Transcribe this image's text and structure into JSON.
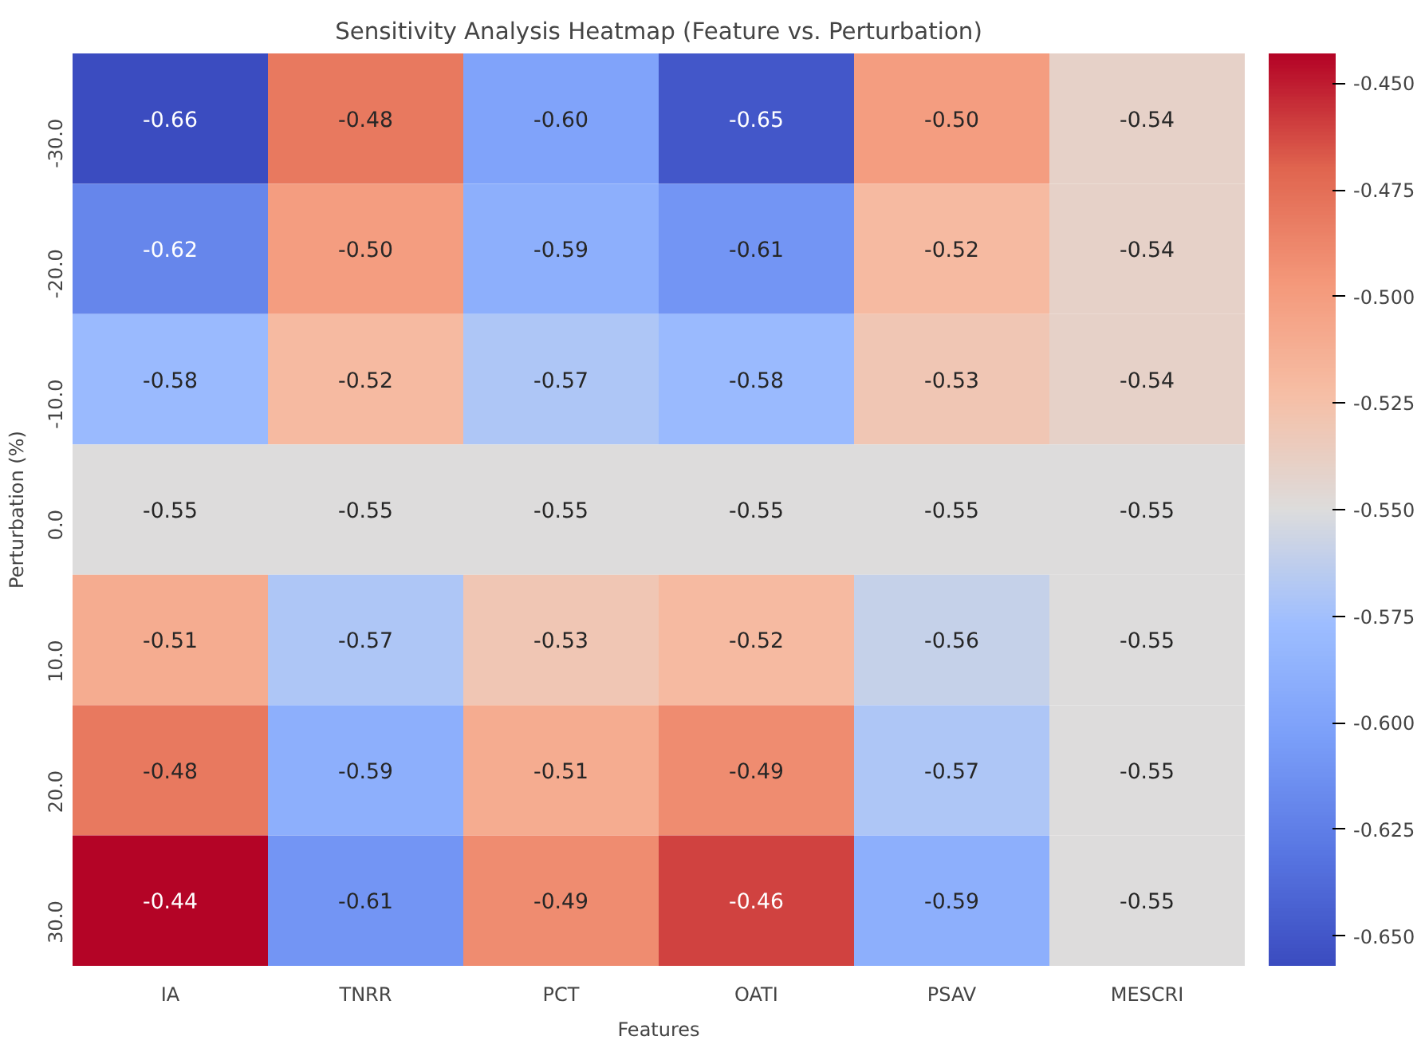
{
  "chart_data": {
    "type": "heatmap",
    "title": "Sensitivity Analysis Heatmap (Feature vs. Perturbation)",
    "xlabel": "Features",
    "ylabel": "Perturbation (%)",
    "categories": [
      "IA",
      "TNRR",
      "PCT",
      "OATI",
      "PSAV",
      "MESCRI"
    ],
    "y_categories": [
      "-30.0",
      "-20.0",
      "-10.0",
      "0.0",
      "10.0",
      "20.0",
      "30.0"
    ],
    "cells": [
      [
        -0.66,
        -0.48,
        -0.6,
        -0.65,
        -0.5,
        -0.54
      ],
      [
        -0.62,
        -0.5,
        -0.59,
        -0.61,
        -0.52,
        -0.54
      ],
      [
        -0.58,
        -0.52,
        -0.57,
        -0.58,
        -0.53,
        -0.54
      ],
      [
        -0.55,
        -0.55,
        -0.55,
        -0.55,
        -0.55,
        -0.55
      ],
      [
        -0.51,
        -0.57,
        -0.53,
        -0.52,
        -0.56,
        -0.55
      ],
      [
        -0.48,
        -0.59,
        -0.51,
        -0.49,
        -0.57,
        -0.55
      ],
      [
        -0.44,
        -0.61,
        -0.49,
        -0.46,
        -0.59,
        -0.55
      ]
    ],
    "cell_labels": [
      [
        "-0.66",
        "-0.48",
        "-0.60",
        "-0.65",
        "-0.50",
        "-0.54"
      ],
      [
        "-0.62",
        "-0.50",
        "-0.59",
        "-0.61",
        "-0.52",
        "-0.54"
      ],
      [
        "-0.58",
        "-0.52",
        "-0.57",
        "-0.58",
        "-0.53",
        "-0.54"
      ],
      [
        "-0.55",
        "-0.55",
        "-0.55",
        "-0.55",
        "-0.55",
        "-0.55"
      ],
      [
        "-0.51",
        "-0.57",
        "-0.53",
        "-0.52",
        "-0.56",
        "-0.55"
      ],
      [
        "-0.48",
        "-0.59",
        "-0.51",
        "-0.49",
        "-0.57",
        "-0.55"
      ],
      [
        "-0.44",
        "-0.61",
        "-0.49",
        "-0.46",
        "-0.59",
        "-0.55"
      ]
    ],
    "data_labels": true,
    "clim": [
      -0.657,
      -0.443
    ],
    "cticks": [
      {
        "value": -0.45,
        "label": "-0.450"
      },
      {
        "value": -0.475,
        "label": "-0.475"
      },
      {
        "value": -0.5,
        "label": "-0.500"
      },
      {
        "value": -0.525,
        "label": "-0.525"
      },
      {
        "value": -0.55,
        "label": "-0.550"
      },
      {
        "value": -0.575,
        "label": "-0.575"
      },
      {
        "value": -0.6,
        "label": "-0.600"
      },
      {
        "value": -0.625,
        "label": "-0.625"
      },
      {
        "value": -0.65,
        "label": "-0.650"
      }
    ]
  }
}
